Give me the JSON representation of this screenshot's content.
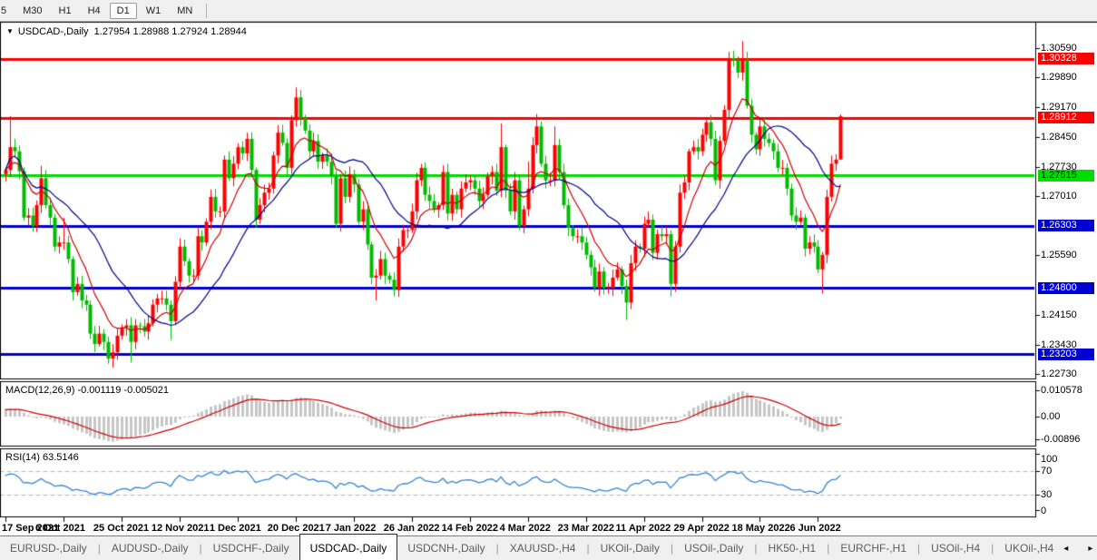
{
  "toolbar": {
    "timeframes": [
      "5",
      "M30",
      "H1",
      "H4",
      "D1",
      "W1",
      "MN"
    ],
    "active_timeframe": "D1"
  },
  "chart_header": {
    "dropdown_icon": "▼",
    "title": "USDCAD-,Daily",
    "ohlc_text": "1.27954 1.28988 1.27924 1.28944"
  },
  "price_axis": {
    "ticks": [
      "1.30590",
      "1.29890",
      "1.29170",
      "1.28450",
      "1.27730",
      "1.27010",
      "1.25590",
      "1.24150",
      "1.23430",
      "1.22730"
    ],
    "badges": [
      {
        "value": "1.30328",
        "price": 1.30328,
        "bg": "#ff0000",
        "fg": "#ffffff"
      },
      {
        "value": "1.28912",
        "price": 1.28912,
        "bg": "#ff0000",
        "fg": "#ffffff"
      },
      {
        "value": "1.27515",
        "price": 1.27515,
        "bg": "#00dd00",
        "fg": "#000000"
      },
      {
        "value": "1.26303",
        "price": 1.26303,
        "bg": "#0000d0",
        "fg": "#ffffff"
      },
      {
        "value": "1.24800",
        "price": 1.248,
        "bg": "#0000d0",
        "fg": "#ffffff"
      },
      {
        "value": "1.23203",
        "price": 1.23203,
        "bg": "#0000d0",
        "fg": "#ffffff"
      }
    ]
  },
  "macd_panel": {
    "label": "MACD(12,26,9) -0.001119 -0.005021",
    "axis": [
      "0.010578",
      "0.00",
      "-0.00896"
    ]
  },
  "rsi_panel": {
    "label": "RSI(14) 63.5146",
    "axis": [
      "100",
      "70",
      "30",
      "0"
    ],
    "levels": [
      70,
      30
    ]
  },
  "date_axis": [
    "17 Sep 2021",
    "6 Oct 2021",
    "25 Oct 2021",
    "12 Nov 2021",
    "1 Dec 2021",
    "20 Dec 2021",
    "7 Jan 2022",
    "26 Jan 2022",
    "14 Feb 2022",
    "4 Mar 2022",
    "23 Mar 2022",
    "11 Apr 2022",
    "29 Apr 2022",
    "18 May 2022",
    "6 Jun 2022"
  ],
  "tabs": {
    "items": [
      "EURUSD-,Daily",
      "AUDUSD-,Daily",
      "USDCHF-,Daily",
      "USDCAD-,Daily",
      "USDCNH-,Daily",
      "XAUUSD-,H4",
      "UKOil-,Daily",
      "USOil-,Daily",
      "HK50-,H1",
      "EURCHF-,H1",
      "USOil-,H4",
      "UKOil-,H4"
    ],
    "active_index": 3,
    "left_arrow": "◂",
    "right_arrow": "▸"
  },
  "chart_data": {
    "type": "candlestick",
    "symbol": "USDCAD",
    "timeframe": "Daily",
    "last_quote": {
      "open": 1.27954,
      "high": 1.28988,
      "low": 1.27924,
      "close": 1.28944
    },
    "horizontal_levels": [
      {
        "price": 1.30328,
        "color": "#ff0000",
        "role": "resistance"
      },
      {
        "price": 1.28912,
        "color": "#ff0000",
        "role": "resistance"
      },
      {
        "price": 1.27515,
        "color": "#00dd00",
        "role": "pivot"
      },
      {
        "price": 1.26303,
        "color": "#0000d0",
        "role": "support"
      },
      {
        "price": 1.248,
        "color": "#0000d0",
        "role": "support"
      },
      {
        "price": 1.23203,
        "color": "#0000d0",
        "role": "support"
      }
    ],
    "colors": {
      "candle_up": "#ff0000",
      "candle_down": "#00bb00",
      "ma_fast": "#cc0000",
      "ma_slow": "#00008b",
      "macd_histogram": "#c6c6c6",
      "macd_signal": "#cc0000",
      "rsi_line": "#3585d5",
      "rsi_level_dash": "#b8b8b8"
    },
    "indicators": {
      "macd": {
        "fast": 12,
        "slow": 26,
        "signal": 9,
        "main_value": -0.001119,
        "signal_value": -0.005021
      },
      "rsi": {
        "period": 14,
        "value": 63.5146
      }
    },
    "candles": [
      [
        1.2765
      ],
      [
        1.282,
        1.2895
      ],
      [
        1.281
      ],
      [
        1.2762
      ],
      [
        1.265
      ],
      [
        1.2655
      ],
      [
        1.263
      ],
      [
        1.268
      ],
      [
        1.2745,
        1.2775
      ],
      [
        1.268
      ],
      [
        1.265
      ],
      [
        1.258
      ],
      [
        1.259
      ],
      [
        1.259,
        1.265
      ],
      [
        1.255
      ],
      [
        1.247
      ],
      [
        1.249
      ],
      [
        1.245
      ],
      [
        1.244
      ],
      [
        1.237
      ],
      [
        1.2345
      ],
      [
        1.237
      ],
      [
        1.235
      ],
      [
        1.231
      ],
      [
        1.2325,
        null,
        1.2288
      ],
      [
        1.2365
      ],
      [
        1.2385
      ],
      [
        1.239
      ],
      [
        1.235,
        null,
        1.23
      ],
      [
        1.239
      ],
      [
        1.2388
      ],
      [
        1.2375
      ],
      [
        1.2395
      ],
      [
        1.244
      ],
      [
        1.2455
      ],
      [
        1.2455
      ],
      [
        1.244
      ],
      [
        1.24,
        null,
        1.2355
      ],
      [
        1.2495
      ],
      [
        1.258
      ],
      [
        1.2545
      ],
      [
        1.251
      ],
      [
        1.251
      ],
      [
        1.2605
      ],
      [
        1.259
      ],
      [
        1.264
      ],
      [
        1.27
      ],
      [
        1.2665
      ],
      [
        1.2665
      ],
      [
        1.279,
        1.28
      ],
      [
        1.2745
      ],
      [
        1.278
      ],
      [
        1.282
      ],
      [
        1.2805
      ],
      [
        1.284,
        1.2855
      ],
      [
        1.2765
      ],
      [
        1.2645
      ],
      [
        1.268
      ],
      [
        1.271
      ],
      [
        1.272
      ],
      [
        1.28
      ],
      [
        1.2855
      ],
      [
        1.283
      ],
      [
        1.277
      ],
      [
        1.2885
      ],
      [
        1.294,
        1.2964
      ],
      [
        1.289
      ],
      [
        1.286
      ],
      [
        1.281
      ],
      [
        1.2835
      ],
      [
        1.2785
      ],
      [
        1.28
      ],
      [
        1.2785
      ],
      [
        1.275
      ],
      [
        1.2635
      ],
      [
        1.2745
      ],
      [
        1.27
      ],
      [
        1.2755
      ],
      [
        1.273
      ],
      [
        1.264
      ],
      [
        1.267
      ],
      [
        1.2585
      ],
      [
        1.2505
      ],
      [
        1.251,
        null,
        1.245
      ],
      [
        1.255
      ],
      [
        1.251
      ],
      [
        1.25
      ],
      [
        1.2475,
        null,
        1.246
      ],
      [
        1.258
      ],
      [
        1.262
      ],
      [
        1.262
      ],
      [
        1.2665
      ],
      [
        1.274
      ],
      [
        1.277
      ],
      [
        1.2705
      ],
      [
        1.269
      ],
      [
        1.267
      ],
      [
        1.268
      ],
      [
        1.276
      ],
      [
        1.266
      ],
      [
        1.2705
      ],
      [
        1.267
      ],
      [
        1.272
      ],
      [
        1.2735
      ],
      [
        1.274
      ],
      [
        1.272
      ],
      [
        1.269
      ],
      [
        1.2705
      ],
      [
        1.275
      ],
      [
        1.276
      ],
      [
        1.2715
      ],
      [
        1.282,
        1.2877
      ],
      [
        1.2715
      ],
      [
        1.2665
      ],
      [
        1.274
      ],
      [
        1.263
      ],
      [
        1.267
      ],
      [
        1.272,
        1.2785
      ],
      [
        1.2825
      ],
      [
        1.287,
        1.29
      ],
      [
        1.278
      ],
      [
        1.274
      ],
      [
        1.274
      ],
      [
        1.2825,
        1.287
      ],
      [
        1.276
      ],
      [
        1.268
      ],
      [
        1.2625
      ],
      [
        1.2605
      ],
      [
        1.2605
      ],
      [
        1.259
      ],
      [
        1.256
      ],
      [
        1.253
      ],
      [
        1.248
      ],
      [
        1.252
      ],
      [
        1.248
      ],
      [
        1.248
      ],
      [
        1.2505
      ],
      [
        1.2525
      ],
      [
        1.2485
      ],
      [
        1.2445,
        null,
        1.2403
      ],
      [
        1.254
      ],
      [
        1.258
      ],
      [
        1.2575
      ],
      [
        1.2635
      ],
      [
        1.2645
      ],
      [
        1.2565
      ],
      [
        1.261
      ],
      [
        1.2605
      ],
      [
        1.261
      ],
      [
        1.249,
        null,
        1.246
      ],
      [
        1.258
      ],
      [
        1.271
      ],
      [
        1.2735
      ],
      [
        1.281
      ],
      [
        1.282
      ],
      [
        1.281
      ],
      [
        1.285
      ],
      [
        1.288
      ],
      [
        1.284
      ],
      [
        1.274
      ],
      [
        1.2835
      ],
      [
        1.291
      ],
      [
        1.3035,
        1.305
      ],
      [
        1.303
      ],
      [
        1.3
      ],
      [
        1.303,
        1.3076
      ],
      [
        1.292
      ],
      [
        1.285
      ],
      [
        1.2815
      ],
      [
        1.287
      ],
      [
        1.284
      ],
      [
        1.283
      ],
      [
        1.281
      ],
      [
        1.277
      ],
      [
        1.277
      ],
      [
        1.272
      ],
      [
        1.2655
      ],
      [
        1.264
      ],
      [
        1.265
      ],
      [
        1.2575
      ],
      [
        1.259
      ],
      [
        1.258
      ],
      [
        1.2525,
        null,
        1.2516
      ],
      [
        1.256,
        null,
        1.2467
      ],
      [
        1.27
      ],
      [
        1.278
      ],
      [
        1.279
      ],
      [
        1.28944,
        1.28988,
        1.27924
      ]
    ]
  }
}
